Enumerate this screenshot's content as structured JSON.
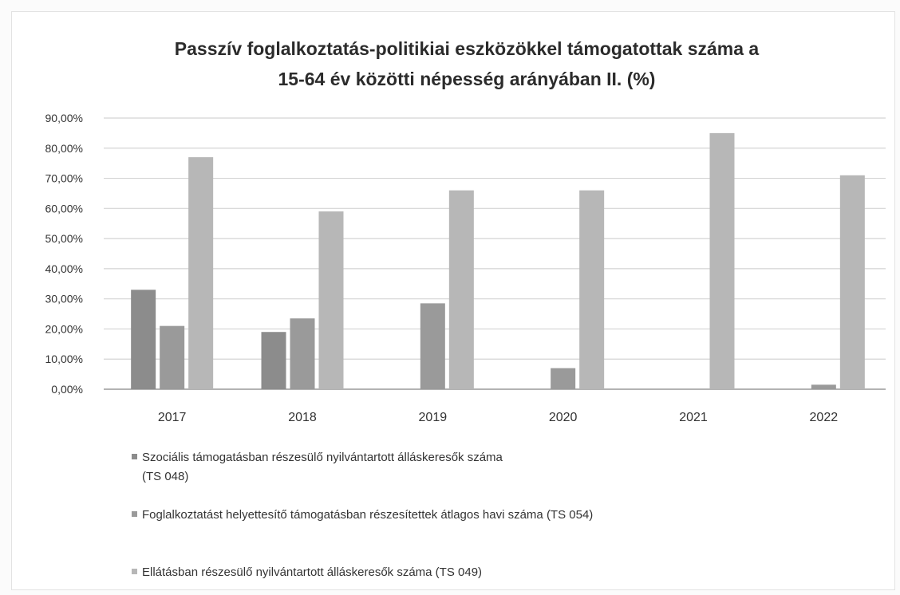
{
  "chart_data": {
    "type": "bar",
    "title_line1": "Passzív foglalkoztatás-politikiai eszközökkel támogatottak száma a",
    "title_line2": "15-64 év közötti népesség  arányában II. (%)",
    "categories": [
      "2017",
      "2018",
      "2019",
      "2020",
      "2021",
      "2022"
    ],
    "ylim": [
      0,
      90
    ],
    "y_ticks": [
      "0,00%",
      "10,00%",
      "20,00%",
      "30,00%",
      "40,00%",
      "50,00%",
      "60,00%",
      "70,00%",
      "80,00%",
      "90,00%"
    ],
    "grid": true,
    "legend_position": "bottom",
    "series": [
      {
        "name": "Szociális támogatásban részesülő nyilvántartott álláskeresők száma (TS 048)",
        "name_line1": "Szociális támogatásban részesülő nyilvántartott álláskeresők száma",
        "name_line2": "(TS 048)",
        "color": "#8c8c8c",
        "values": [
          33,
          19,
          0,
          0,
          0,
          0
        ]
      },
      {
        "name": "Foglalkoztatást helyettesítő támogatásban részesítettek átlagos havi száma (TS 054)",
        "color": "#9a9a9a",
        "values": [
          21,
          23.5,
          28.5,
          7,
          0,
          1.5
        ]
      },
      {
        "name": "Ellátásban részesülő nyilvántartott álláskeresők száma (TS 049)",
        "color": "#b7b7b7",
        "values": [
          77,
          59,
          66,
          66,
          85,
          71
        ]
      }
    ]
  }
}
